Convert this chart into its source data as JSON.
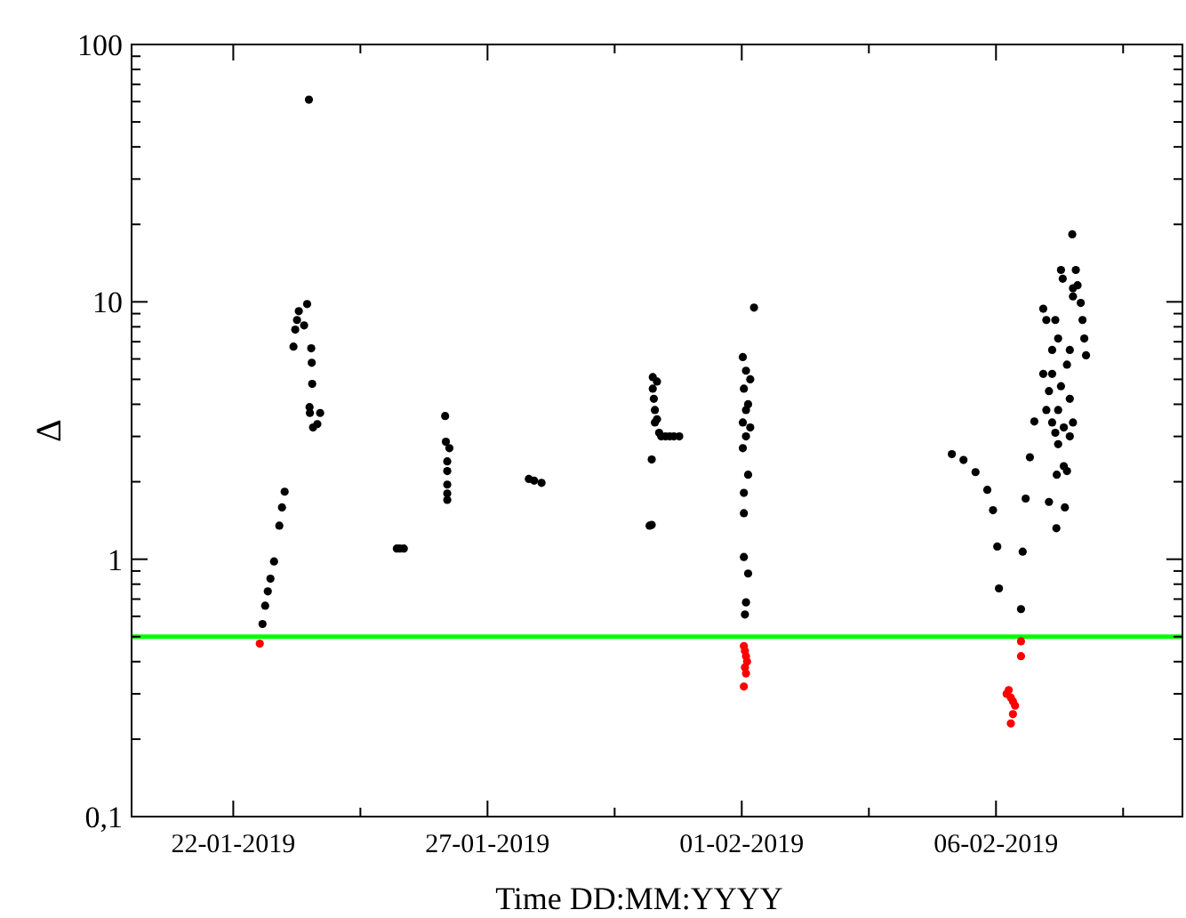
{
  "chart_data": {
    "type": "scatter",
    "xlabel": "Time DD:MM:YYYY",
    "ylabel": "Δ",
    "log": "y",
    "grid": false,
    "marker": "circle",
    "xlim": [
      "2019-01-20",
      "2019-02-09T16:00"
    ],
    "xticks": [
      {
        "value": "2019-01-22",
        "label": "22-01-2019"
      },
      {
        "value": "2019-01-24T12:00",
        "label": null
      },
      {
        "value": "2019-01-27",
        "label": "27-01-2019"
      },
      {
        "value": "2019-01-29T12:00",
        "label": null
      },
      {
        "value": "2019-02-01",
        "label": "01-02-2019"
      },
      {
        "value": "2019-02-03T12:00",
        "label": null
      },
      {
        "value": "2019-02-06",
        "label": "06-02-2019"
      },
      {
        "value": "2019-02-08T12:00",
        "label": null
      }
    ],
    "ylim": [
      0.1,
      100
    ],
    "yticks": [
      {
        "value": 0.1,
        "label": "0,1"
      },
      {
        "value": 0.2,
        "label": null
      },
      {
        "value": 0.3,
        "label": null
      },
      {
        "value": 0.4,
        "label": null
      },
      {
        "value": 0.5,
        "label": null
      },
      {
        "value": 0.6,
        "label": null
      },
      {
        "value": 0.7,
        "label": null
      },
      {
        "value": 0.8,
        "label": null
      },
      {
        "value": 0.9,
        "label": null
      },
      1,
      {
        "value": 2,
        "label": null
      },
      {
        "value": 3,
        "label": null
      },
      {
        "value": 4,
        "label": null
      },
      {
        "value": 5,
        "label": null
      },
      {
        "value": 6,
        "label": null
      },
      {
        "value": 7,
        "label": null
      },
      {
        "value": 8,
        "label": null
      },
      {
        "value": 9,
        "label": null
      },
      10,
      {
        "value": 20,
        "label": null
      },
      {
        "value": 30,
        "label": null
      },
      {
        "value": 40,
        "label": null
      },
      {
        "value": 50,
        "label": null
      },
      {
        "value": 60,
        "label": null
      },
      {
        "value": 70,
        "label": null
      },
      {
        "value": 80,
        "label": null
      },
      {
        "value": 90,
        "label": null
      },
      100
    ],
    "ref_lines": [
      {
        "axis": "y",
        "value": 0.5,
        "color": "#00ff00"
      }
    ],
    "series": [
      {
        "color": "#000000",
        "x": [
          "2019-01-22T13:48",
          "2019-01-22T15:03",
          "2019-01-22T16:18",
          "2019-01-22T17:33",
          "2019-01-22T19:14",
          "2019-01-22T21:44",
          "2019-01-22T23:00",
          "2019-01-23T00:15",
          "2019-01-23T04:25",
          "2019-01-23T05:15",
          "2019-01-23T06:05",
          "2019-01-23T06:56",
          "2019-01-23T09:26",
          "2019-01-23T10:51",
          "2019-01-23T11:42",
          "2019-01-23T12:47",
          "2019-01-23T13:02",
          "2019-01-23T13:15",
          "2019-01-23T12:00",
          "2019-01-23T12:10",
          "2019-01-23T13:40",
          "2019-01-23T15:40",
          "2019-01-23T17:00",
          "2019-01-25T05:12",
          "2019-01-25T06:36",
          "2019-01-25T08:30",
          "2019-01-26T04:00",
          "2019-01-26T04:20",
          "2019-01-26T06:00",
          "2019-01-26T05:00",
          "2019-01-26T05:00",
          "2019-01-26T05:00",
          "2019-01-26T05:00",
          "2019-01-26T05:00",
          "2019-01-27T19:30",
          "2019-01-27T22:00",
          "2019-01-28T01:30",
          "2019-01-30T04:30",
          "2019-01-30T05:30",
          "2019-01-30T05:30",
          "2019-01-30T06:00",
          "2019-01-30T06:00",
          "2019-01-30T06:30",
          "2019-01-30T07:00",
          "2019-01-30T07:00",
          "2019-01-30T08:00",
          "2019-01-30T08:00",
          "2019-01-30T09:00",
          "2019-01-30T10:00",
          "2019-01-30T12:00",
          "2019-01-30T14:00",
          "2019-01-30T16:00",
          "2019-01-30T18:30",
          "2019-02-01T05:48",
          "2019-02-01T00:30",
          "2019-02-01T02:00",
          "2019-02-01T04:00",
          "2019-02-01T01:00",
          "2019-02-01T03:00",
          "2019-02-01T02:00",
          "2019-02-01T00:30",
          "2019-02-01T04:00",
          "2019-02-01T02:00",
          "2019-02-01T00:30",
          "2019-02-01T03:00",
          "2019-02-01T01:00",
          "2019-02-01T01:00",
          "2019-02-01T01:00",
          "2019-02-01T03:00",
          "2019-02-01T02:00",
          "2019-02-01T01:30",
          "2019-02-05T03:10",
          "2019-02-05T08:40",
          "2019-02-05T14:20",
          "2019-02-05T19:54",
          "2019-02-05T22:36",
          "2019-02-06T00:36",
          "2019-02-06T01:24",
          "2019-02-06T11:48",
          "2019-02-06T12:36",
          "2019-02-06T14:00",
          "2019-02-06T16:00",
          "2019-02-06T18:06",
          "2019-02-06T22:18",
          "2019-02-06T23:45",
          "2019-02-07T06:40",
          "2019-02-07T07:30",
          "2019-02-07T04:00",
          "2019-02-07T05:20",
          "2019-02-07T02:30",
          "2019-02-07T10:50",
          "2019-02-07T09:30",
          "2019-02-06T22:18",
          "2019-02-07T02:30",
          "2019-02-07T06:40",
          "2019-02-07T01:00",
          "2019-02-07T10:50",
          "2019-02-07T05:20",
          "2019-02-06T23:45",
          "2019-02-07T12:20",
          "2019-02-07T08:00",
          "2019-02-07T04:00",
          "2019-02-07T02:30",
          "2019-02-07T05:20",
          "2019-02-07T10:50",
          "2019-02-07T08:00",
          "2019-02-07T04:40",
          "2019-02-07T09:30",
          "2019-02-07T01:00",
          "2019-02-07T08:30",
          "2019-02-07T04:30",
          "2019-02-07T12:00",
          "2019-02-07T13:40",
          "2019-02-07T14:30",
          "2019-02-07T16:00",
          "2019-02-07T16:50",
          "2019-02-07T17:40",
          "2019-02-07T18:30",
          "2019-02-07T12:20",
          "2019-02-07T12:20"
        ],
        "values": [
          0.56,
          0.66,
          0.75,
          0.84,
          0.98,
          1.35,
          1.59,
          1.83,
          6.7,
          7.8,
          8.5,
          9.2,
          8.1,
          9.8,
          61,
          6.6,
          5.8,
          4.8,
          3.9,
          3.7,
          3.25,
          3.35,
          3.7,
          1.1,
          1.1,
          1.1,
          3.6,
          2.86,
          2.7,
          2.4,
          2.2,
          1.95,
          1.8,
          1.7,
          2.05,
          2.02,
          1.98,
          1.35,
          1.36,
          2.44,
          5.1,
          4.6,
          4.2,
          3.8,
          3.4,
          4.9,
          3.5,
          3.1,
          3.0,
          3.0,
          3.0,
          3.0,
          3.0,
          9.5,
          6.1,
          5.4,
          5.0,
          4.6,
          4.0,
          3.8,
          3.4,
          3.25,
          3.0,
          2.7,
          2.13,
          1.81,
          1.51,
          1.02,
          0.88,
          0.68,
          0.61,
          2.56,
          2.43,
          2.18,
          1.86,
          1.55,
          1.12,
          0.77,
          0.64,
          1.07,
          1.72,
          2.49,
          3.43,
          9.4,
          8.5,
          13.3,
          12.3,
          8.5,
          7.2,
          6.5,
          6.5,
          5.7,
          5.25,
          5.25,
          4.7,
          4.5,
          4.2,
          3.8,
          3.8,
          3.4,
          3.25,
          3.1,
          3.4,
          2.8,
          3.0,
          2.3,
          2.13,
          2.2,
          1.67,
          1.59,
          1.32,
          18.3,
          13.3,
          11.6,
          9.9,
          8.5,
          7.2,
          6.2,
          11.3,
          10.5
        ]
      },
      {
        "color": "#ff0000",
        "x": [
          "2019-01-22T12:30",
          "2019-02-01T01:00",
          "2019-02-01T01:30",
          "2019-02-01T02:00",
          "2019-02-01T02:30",
          "2019-02-01T01:30",
          "2019-02-01T02:00",
          "2019-02-01T01:00",
          "2019-02-06T11:48",
          "2019-02-06T11:48",
          "2019-02-06T05:00",
          "2019-02-06T06:00",
          "2019-02-06T07:00",
          "2019-02-06T08:00",
          "2019-02-06T09:00",
          "2019-02-06T08:00",
          "2019-02-06T07:00"
        ],
        "values": [
          0.47,
          0.46,
          0.44,
          0.42,
          0.4,
          0.38,
          0.36,
          0.32,
          0.48,
          0.42,
          0.3,
          0.31,
          0.29,
          0.28,
          0.27,
          0.25,
          0.23
        ]
      }
    ]
  }
}
